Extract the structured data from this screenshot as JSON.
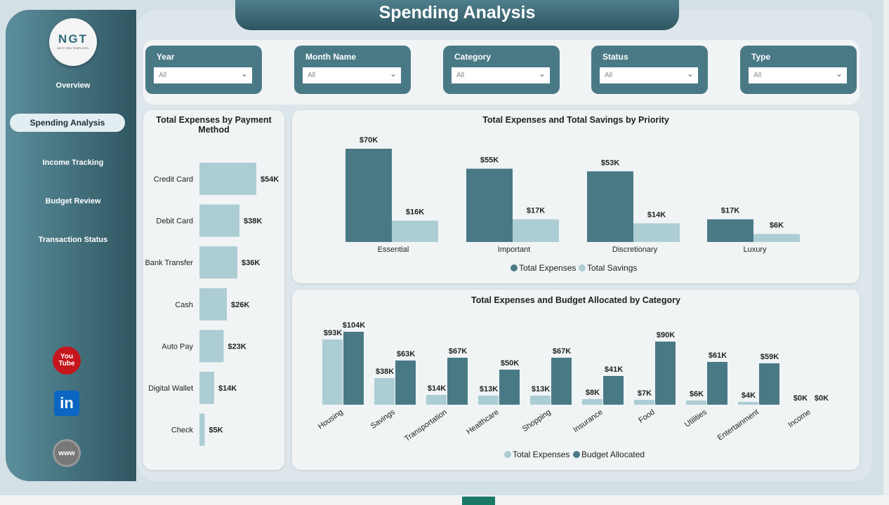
{
  "title": "Spending Analysis",
  "logo": {
    "text": "NGT",
    "subtitle": "NEXT GEN TEMPLATES"
  },
  "nav": [
    {
      "label": "Overview"
    },
    {
      "label": "Spending Analysis",
      "active": true
    },
    {
      "label": "Income Tracking"
    },
    {
      "label": "Budget Review"
    },
    {
      "label": "Transaction Status"
    }
  ],
  "social": [
    {
      "name": "youtube-icon",
      "label": "You Tube",
      "color": "#c4161c"
    },
    {
      "name": "linkedin-icon",
      "label": "in",
      "color": "#0a66c2"
    },
    {
      "name": "web-icon",
      "label": "www",
      "color": "#777777"
    }
  ],
  "filters": [
    {
      "label": "Year",
      "value": "All"
    },
    {
      "label": "Month Name",
      "value": "All"
    },
    {
      "label": "Category",
      "value": "All"
    },
    {
      "label": "Status",
      "value": "All"
    },
    {
      "label": "Type",
      "value": "All"
    }
  ],
  "colors": {
    "dark": "#4a7986",
    "light": "#adcdd5"
  },
  "chart_data": [
    {
      "type": "bar",
      "orientation": "horizontal",
      "title": "Total Expenses by Payment Method",
      "categories": [
        "Credit Card",
        "Debit Card",
        "Bank Transfer",
        "Cash",
        "Auto Pay",
        "Digital Wallet",
        "Check"
      ],
      "values": [
        54,
        38,
        36,
        26,
        23,
        14,
        5
      ],
      "labels": [
        "$54K",
        "$38K",
        "$36K",
        "$26K",
        "$23K",
        "$14K",
        "$5K"
      ],
      "unit": "K USD"
    },
    {
      "type": "bar",
      "title": "Total Expenses and Total Savings by Priority",
      "categories": [
        "Essential",
        "Important",
        "Discretionary",
        "Luxury"
      ],
      "series": [
        {
          "name": "Total Expenses",
          "values": [
            70,
            55,
            53,
            17
          ],
          "labels": [
            "$70K",
            "$55K",
            "$53K",
            "$17K"
          ]
        },
        {
          "name": "Total Savings",
          "values": [
            16,
            17,
            14,
            6
          ],
          "labels": [
            "$16K",
            "$17K",
            "$14K",
            "$6K"
          ]
        }
      ],
      "legend": "bottom"
    },
    {
      "type": "bar",
      "title": "Total Expenses and Budget Allocated by Category",
      "categories": [
        "Housing",
        "Savings",
        "Transportation",
        "Healthcare",
        "Shopping",
        "Insurance",
        "Food",
        "Utilities",
        "Entertainment",
        "Income"
      ],
      "series": [
        {
          "name": "Total Expenses",
          "values": [
            93,
            38,
            14,
            13,
            13,
            8,
            7,
            6,
            4,
            0
          ],
          "labels": [
            "$93K",
            "$38K",
            "$14K",
            "$13K",
            "$13K",
            "$8K",
            "$7K",
            "$6K",
            "$4K",
            "$0K"
          ]
        },
        {
          "name": "Budget Allocated",
          "values": [
            104,
            63,
            67,
            50,
            67,
            41,
            90,
            61,
            59,
            0
          ],
          "labels": [
            "$104K",
            "$63K",
            "$67K",
            "$50K",
            "$67K",
            "$41K",
            "$90K",
            "$61K",
            "$59K",
            "$0K"
          ]
        }
      ],
      "legend": "bottom"
    }
  ]
}
